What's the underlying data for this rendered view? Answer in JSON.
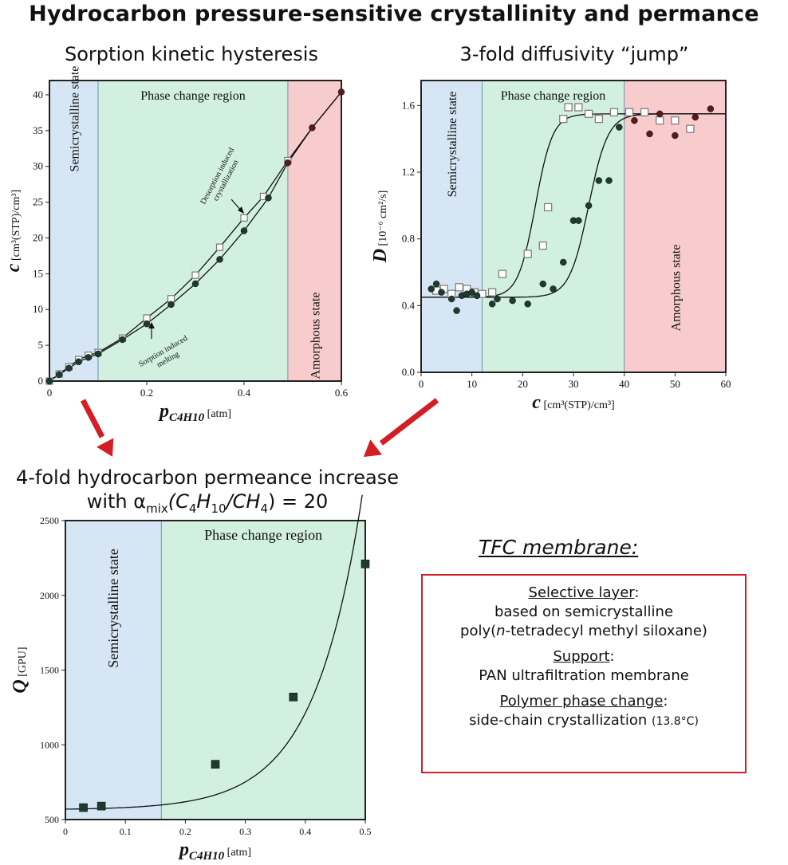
{
  "main_title": "Hydrocarbon pressure-sensitive crystallinity and permance",
  "panel1_title": "Sorption kinetic hysteresis",
  "panel2_title": "3-fold diffusivity “jump”",
  "panel3_title_line1": "4-fold hydrocarbon permeance increase",
  "panel3_title_line2": {
    "prefix": "with α",
    "sub1": "mix",
    "mid": "(C",
    "sub2": "4",
    "mid2": "H",
    "sub3": "10",
    "mid3": "/CH",
    "sub4": "4",
    "suffix": ") = 20"
  },
  "colors": {
    "semicrystalline": "#d6e6f4",
    "phase_change": "#d1f0df",
    "amorphous": "#f8cccc",
    "arrow": "#d21f25",
    "marker_dark": "#1f3a2e",
    "marker_dark_red": "#5a1a1a",
    "box_border": "#d21f25"
  },
  "tfc": {
    "heading": "TFC membrane:",
    "selective_label": "Selective layer",
    "selective_line1": "based on semicrystalline",
    "selective_line2_pre": "poly(",
    "selective_line2_italic": "n",
    "selective_line2_post": "-tetradecyl methyl siloxane)",
    "support_label": "Support",
    "support_line": "PAN ultrafiltration membrane",
    "phase_label": "Polymer phase change",
    "phase_line_main": "side-chain crystallization ",
    "phase_line_small": "(13.8°C)",
    "colon": ":"
  },
  "chart_data": [
    {
      "type": "scatter",
      "region_labels": {
        "semi": "Semicrystalline state",
        "phase": "Phase change region",
        "amorph": "Amorphous state"
      },
      "regions": {
        "semi": [
          0,
          0.1
        ],
        "phase": [
          0.1,
          0.49
        ],
        "amorph": [
          0.49,
          0.6
        ]
      },
      "xlabel_main": "p",
      "xlabel_sub": "C4H10",
      "xlabel_unit": " [atm]",
      "ylabel_main": "c",
      "ylabel_unit": " [cm³(STP)/cm³]",
      "xlim": [
        0,
        0.6
      ],
      "ylim": [
        0,
        42
      ],
      "xticks": [
        0,
        0.2,
        0.4,
        0.6
      ],
      "xtick_labels": [
        "0",
        "0.2",
        "0.4",
        "0.6"
      ],
      "yticks": [
        0,
        5,
        10,
        15,
        20,
        25,
        30,
        35,
        40
      ],
      "ytick_labels": [
        "0",
        "5",
        "10",
        "15",
        "20",
        "25",
        "30",
        "35",
        "40"
      ],
      "annotations": {
        "desorption_line1": "Desorption induced",
        "desorption_line2": "crystallization",
        "sorption_line1": "Sorption induced",
        "sorption_line2": "melting"
      },
      "series": [
        {
          "name": "desorption",
          "marker": "open-square",
          "x": [
            0.0,
            0.02,
            0.04,
            0.06,
            0.08,
            0.1,
            0.15,
            0.2,
            0.25,
            0.3,
            0.35,
            0.4,
            0.44,
            0.49
          ],
          "y": [
            0.0,
            1.0,
            2.0,
            3.0,
            3.6,
            4.0,
            6.0,
            8.8,
            11.5,
            14.8,
            18.7,
            22.8,
            25.8,
            30.8
          ]
        },
        {
          "name": "sorption",
          "marker": "filled-circle",
          "x": [
            0.0,
            0.02,
            0.04,
            0.06,
            0.08,
            0.1,
            0.15,
            0.2,
            0.25,
            0.3,
            0.35,
            0.4,
            0.45,
            0.49,
            0.54,
            0.6
          ],
          "y": [
            0.0,
            0.9,
            1.8,
            2.7,
            3.3,
            3.8,
            5.8,
            8.0,
            10.7,
            13.6,
            17.0,
            21.0,
            25.6,
            30.5,
            35.4,
            40.4
          ]
        }
      ]
    },
    {
      "type": "scatter",
      "region_labels": {
        "semi": "Semicrystalline state",
        "phase": "Phase change region",
        "amorph": "Amorphous state"
      },
      "regions": {
        "semi": [
          0,
          12
        ],
        "phase": [
          12,
          40
        ],
        "amorph": [
          40,
          60
        ]
      },
      "xlabel_main": "c",
      "xlabel_unit": " [cm³(STP)/cm³]",
      "ylabel_main": "D",
      "ylabel_unit": " [10⁻⁶ cm²/s]",
      "xlim": [
        0,
        60
      ],
      "ylim": [
        0,
        1.75
      ],
      "xticks": [
        0,
        10,
        20,
        30,
        40,
        50,
        60
      ],
      "xtick_labels": [
        "0",
        "10",
        "20",
        "30",
        "40",
        "50",
        "60"
      ],
      "yticks": [
        0,
        0.4,
        0.8,
        1.2,
        1.6
      ],
      "ytick_labels": [
        "0.0",
        "0.4",
        "0.8",
        "1.2",
        "1.6"
      ],
      "series": [
        {
          "name": "desorption",
          "marker": "open-square",
          "x": [
            3,
            4.5,
            6,
            7.5,
            9,
            10.5,
            12,
            14,
            16,
            21,
            24,
            25,
            28,
            29,
            31,
            33,
            35,
            38,
            41,
            44,
            47,
            50,
            53
          ],
          "y": [
            0.49,
            0.5,
            0.47,
            0.51,
            0.5,
            0.48,
            0.47,
            0.48,
            0.59,
            0.71,
            0.76,
            0.99,
            1.52,
            1.59,
            1.59,
            1.55,
            1.52,
            1.56,
            1.56,
            1.56,
            1.51,
            1.51,
            1.46
          ]
        },
        {
          "name": "sorption",
          "marker": "filled-circle",
          "x": [
            2,
            3,
            4,
            6,
            7,
            8,
            9,
            10,
            11,
            14,
            15,
            18,
            21,
            24,
            26,
            28,
            30,
            31,
            33,
            35,
            37,
            39,
            42,
            45,
            47,
            50,
            54,
            57
          ],
          "y": [
            0.5,
            0.53,
            0.48,
            0.44,
            0.37,
            0.46,
            0.47,
            0.48,
            0.46,
            0.41,
            0.44,
            0.43,
            0.41,
            0.53,
            0.5,
            0.66,
            0.91,
            0.91,
            1.0,
            1.15,
            1.15,
            1.47,
            1.51,
            1.43,
            1.55,
            1.42,
            1.53,
            1.58
          ]
        }
      ]
    },
    {
      "type": "scatter",
      "region_labels": {
        "semi": "Semicrystalline state",
        "phase": "Phase change region"
      },
      "regions": {
        "semi": [
          0,
          0.16
        ],
        "phase": [
          0.16,
          0.5
        ]
      },
      "xlabel_main": "p",
      "xlabel_sub": "C4H10",
      "xlabel_unit": " [atm]",
      "ylabel_main": "Q",
      "ylabel_unit": " [GPU]",
      "xlim": [
        0,
        0.5
      ],
      "ylim": [
        500,
        2500
      ],
      "xticks": [
        0,
        0.1,
        0.2,
        0.3,
        0.4,
        0.5
      ],
      "xtick_labels": [
        "0",
        "0.1",
        "0.2",
        "0.3",
        "0.4",
        "0.5"
      ],
      "yticks": [
        500,
        1000,
        1500,
        2000,
        2500
      ],
      "ytick_labels": [
        "500",
        "1000",
        "1500",
        "2000",
        "2500"
      ],
      "series": [
        {
          "name": "permeance",
          "marker": "filled-square",
          "x": [
            0.03,
            0.06,
            0.25,
            0.38,
            0.5
          ],
          "y": [
            580,
            590,
            870,
            1320,
            2210
          ]
        }
      ]
    }
  ]
}
